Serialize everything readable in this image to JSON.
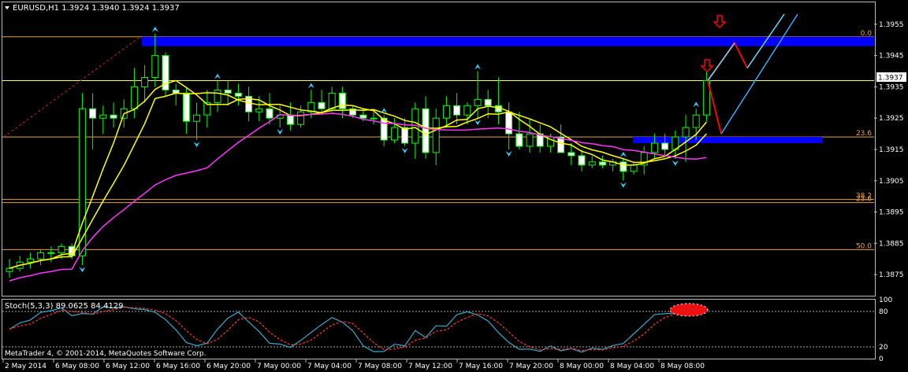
{
  "window": {
    "symbol_caption": "EURUSD,H1  1.3924 1.3940 1.3924 1.3937",
    "price_badge": "1.3937",
    "footer": "MetaTrader 4, © 2001-2014, MetaQuotes Software Corp."
  },
  "colors": {
    "background": "#000000",
    "bull_candle": "#000000",
    "bear_candle": "#ffffff",
    "wick": "#00ff00",
    "ma_fast": "#ffff00",
    "ma_mid": "#ffff00",
    "ma_slow": "#ff33ff",
    "fib": "#e8a040",
    "zone": "#0000ff",
    "arrow_cyan": "#33ccff",
    "arrow_red": "#ff0000",
    "stoch_main": "#33aacc",
    "stoch_signal": "#ff3333"
  },
  "chart_data": [
    {
      "type": "candlestick",
      "title": "EURUSD,H1  1.3924 1.3940 1.3924 1.3937",
      "ylim": [
        1.3868,
        1.3962
      ],
      "y_ticks": [
        "1.3955",
        "1.3945",
        "1.3935",
        "1.3925",
        "1.3915",
        "1.3905",
        "1.3895",
        "1.3885",
        "1.3875"
      ],
      "x_ticks": [
        "2 May 2014",
        "6 May 08:00",
        "6 May 12:00",
        "6 May 16:00",
        "6 May 20:00",
        "7 May 00:00",
        "7 May 04:00",
        "7 May 08:00",
        "7 May 12:00",
        "7 May 16:00",
        "7 May 20:00",
        "8 May 00:00",
        "8 May 04:00",
        "8 May 08:00"
      ],
      "current_price": 1.3937,
      "fib_levels": [
        {
          "label": "0.0",
          "price": 1.3951
        },
        {
          "label": "23.6",
          "price": 1.3919
        },
        {
          "label": "38.2",
          "price": 1.3899
        },
        {
          "label": "23.6",
          "price": 1.3898
        },
        {
          "label": "50.0",
          "price": 1.3883
        }
      ],
      "yellow_line_price": 1.3937,
      "zones": [
        {
          "from": 1.3948,
          "to": 1.3951
        },
        {
          "from": 1.3917,
          "to": 1.3919
        }
      ],
      "ohlc": [
        [
          1.3876,
          1.388,
          1.3874,
          1.3877
        ],
        [
          1.3877,
          1.3881,
          1.3876,
          1.3879
        ],
        [
          1.3879,
          1.3882,
          1.3877,
          1.388
        ],
        [
          1.388,
          1.3883,
          1.3878,
          1.3882
        ],
        [
          1.3882,
          1.3884,
          1.3879,
          1.3882
        ],
        [
          1.3882,
          1.3885,
          1.388,
          1.3884
        ],
        [
          1.3884,
          1.3885,
          1.388,
          1.3881
        ],
        [
          1.3881,
          1.3933,
          1.3878,
          1.3928
        ],
        [
          1.3928,
          1.3933,
          1.3915,
          1.3925
        ],
        [
          1.3925,
          1.3929,
          1.392,
          1.3926
        ],
        [
          1.3926,
          1.393,
          1.3922,
          1.3925
        ],
        [
          1.3925,
          1.3931,
          1.3922,
          1.3928
        ],
        [
          1.3928,
          1.3941,
          1.3925,
          1.3935
        ],
        [
          1.3935,
          1.3942,
          1.393,
          1.3938
        ],
        [
          1.3938,
          1.3952,
          1.3935,
          1.3945
        ],
        [
          1.3945,
          1.3946,
          1.3932,
          1.3934
        ],
        [
          1.3934,
          1.3936,
          1.3929,
          1.3933
        ],
        [
          1.3933,
          1.3935,
          1.392,
          1.3924
        ],
        [
          1.3924,
          1.393,
          1.3918,
          1.3926
        ],
        [
          1.3926,
          1.3934,
          1.3922,
          1.393
        ],
        [
          1.393,
          1.3937,
          1.3927,
          1.3934
        ],
        [
          1.3934,
          1.3937,
          1.3929,
          1.3933
        ],
        [
          1.3933,
          1.3936,
          1.3929,
          1.3932
        ],
        [
          1.3932,
          1.3935,
          1.3924,
          1.3927
        ],
        [
          1.3927,
          1.3932,
          1.3924,
          1.3928
        ],
        [
          1.3928,
          1.3933,
          1.3923,
          1.3925
        ],
        [
          1.3925,
          1.3929,
          1.3922,
          1.3926
        ],
        [
          1.3926,
          1.393,
          1.3921,
          1.3923
        ],
        [
          1.3923,
          1.3929,
          1.3922,
          1.3927
        ],
        [
          1.3927,
          1.3934,
          1.3925,
          1.393
        ],
        [
          1.393,
          1.3934,
          1.3926,
          1.3928
        ],
        [
          1.3928,
          1.3935,
          1.3927,
          1.3933
        ],
        [
          1.3933,
          1.3935,
          1.3925,
          1.3928
        ],
        [
          1.3928,
          1.3929,
          1.3925,
          1.3926
        ],
        [
          1.3926,
          1.3928,
          1.3924,
          1.3925
        ],
        [
          1.3925,
          1.3927,
          1.3923,
          1.3925
        ],
        [
          1.3925,
          1.3926,
          1.3916,
          1.3918
        ],
        [
          1.3918,
          1.3925,
          1.3917,
          1.3922
        ],
        [
          1.3922,
          1.3925,
          1.3916,
          1.3917
        ],
        [
          1.3917,
          1.393,
          1.3912,
          1.3928
        ],
        [
          1.3928,
          1.3932,
          1.3912,
          1.3914
        ],
        [
          1.3914,
          1.3928,
          1.391,
          1.3925
        ],
        [
          1.3925,
          1.3932,
          1.3922,
          1.3929
        ],
        [
          1.3929,
          1.3933,
          1.3923,
          1.3926
        ],
        [
          1.3926,
          1.393,
          1.3923,
          1.3929
        ],
        [
          1.3929,
          1.394,
          1.3925,
          1.3931
        ],
        [
          1.3931,
          1.3934,
          1.3925,
          1.3929
        ],
        [
          1.3929,
          1.3938,
          1.3923,
          1.3927
        ],
        [
          1.3927,
          1.393,
          1.3915,
          1.392
        ],
        [
          1.392,
          1.3927,
          1.3915,
          1.3916
        ],
        [
          1.3916,
          1.3925,
          1.3914,
          1.392
        ],
        [
          1.392,
          1.3923,
          1.3914,
          1.3916
        ],
        [
          1.3916,
          1.392,
          1.3914,
          1.3919
        ],
        [
          1.3919,
          1.3923,
          1.3914,
          1.3914
        ],
        [
          1.3914,
          1.3917,
          1.391,
          1.3913
        ],
        [
          1.3913,
          1.3915,
          1.3908,
          1.391
        ],
        [
          1.391,
          1.3913,
          1.3909,
          1.3911
        ],
        [
          1.3911,
          1.3913,
          1.3909,
          1.391
        ],
        [
          1.391,
          1.3912,
          1.3908,
          1.3911
        ],
        [
          1.3911,
          1.3912,
          1.3905,
          1.3908
        ],
        [
          1.3908,
          1.3911,
          1.3907,
          1.391
        ],
        [
          1.391,
          1.3916,
          1.3907,
          1.3914
        ],
        [
          1.3914,
          1.392,
          1.3912,
          1.3917
        ],
        [
          1.3917,
          1.392,
          1.3913,
          1.3915
        ],
        [
          1.3915,
          1.3921,
          1.3912,
          1.3919
        ],
        [
          1.3919,
          1.3926,
          1.3911,
          1.3922
        ],
        [
          1.3922,
          1.3928,
          1.3918,
          1.3926
        ],
        [
          1.3926,
          1.394,
          1.3924,
          1.3937
        ]
      ],
      "indicator": {
        "name": "Stoch(5,3,3)",
        "main_value": "89.0625",
        "signal_value": "84.4129",
        "ylim": [
          0,
          100
        ],
        "levels": [
          "80",
          "20"
        ],
        "scale_labels": [
          "100",
          "80",
          "20",
          "0"
        ]
      }
    }
  ]
}
